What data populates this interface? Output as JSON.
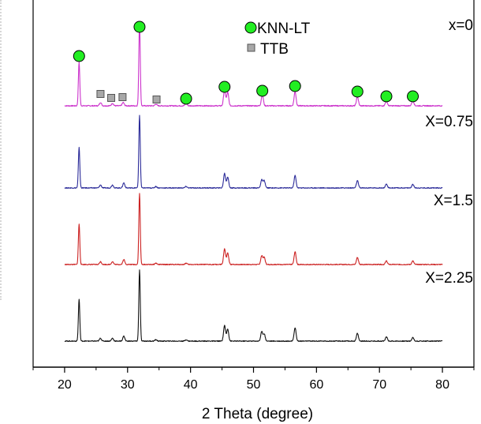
{
  "chart_data": {
    "type": "line",
    "title": "",
    "xlabel": "2 Theta (degree)",
    "ylabel": "",
    "xlim": [
      15,
      85
    ],
    "xticks": [
      20,
      30,
      40,
      50,
      60,
      70,
      80
    ],
    "grid": false,
    "legend": {
      "placement": "top-right",
      "entries": [
        {
          "name": "KNN-LT",
          "marker": "circle",
          "color": "#22ee22"
        },
        {
          "name": "TTB",
          "marker": "square",
          "color": "#a8a8a8"
        }
      ]
    },
    "series": [
      {
        "name": "x=0",
        "color": "#cc33cc",
        "peaks": [
          [
            22.3,
            52
          ],
          [
            25.7,
            4
          ],
          [
            27.6,
            3
          ],
          [
            29.3,
            4
          ],
          [
            31.9,
            100
          ],
          [
            34.5,
            2
          ],
          [
            39.3,
            3
          ],
          [
            45.4,
            20
          ],
          [
            45.9,
            16
          ],
          [
            51.4,
            14
          ],
          [
            56.6,
            17
          ],
          [
            66.5,
            11
          ],
          [
            71.1,
            6
          ],
          [
            75.3,
            7
          ]
        ]
      },
      {
        "name": "X=0.75",
        "color": "#2b2b99",
        "peaks": [
          [
            22.3,
            56
          ],
          [
            25.7,
            4
          ],
          [
            27.6,
            4
          ],
          [
            29.4,
            7
          ],
          [
            31.9,
            100
          ],
          [
            34.5,
            2
          ],
          [
            39.3,
            2
          ],
          [
            45.4,
            20
          ],
          [
            45.9,
            15
          ],
          [
            51.3,
            11
          ],
          [
            51.7,
            10
          ],
          [
            56.6,
            17
          ],
          [
            66.5,
            10
          ],
          [
            71.1,
            5
          ],
          [
            75.3,
            5
          ]
        ]
      },
      {
        "name": "X=1.5",
        "color": "#cc2222",
        "peaks": [
          [
            22.3,
            57
          ],
          [
            25.7,
            4
          ],
          [
            27.6,
            4
          ],
          [
            29.4,
            7
          ],
          [
            31.9,
            100
          ],
          [
            34.5,
            2
          ],
          [
            39.3,
            2
          ],
          [
            45.4,
            22
          ],
          [
            45.9,
            16
          ],
          [
            51.3,
            12
          ],
          [
            51.7,
            10
          ],
          [
            56.6,
            18
          ],
          [
            66.5,
            10
          ],
          [
            71.1,
            5
          ],
          [
            75.3,
            5
          ]
        ]
      },
      {
        "name": "X=2.25",
        "color": "#111111",
        "peaks": [
          [
            22.3,
            59
          ],
          [
            25.7,
            4
          ],
          [
            27.6,
            4
          ],
          [
            29.4,
            7
          ],
          [
            31.9,
            100
          ],
          [
            34.5,
            2
          ],
          [
            39.3,
            2
          ],
          [
            45.4,
            22
          ],
          [
            45.9,
            17
          ],
          [
            51.3,
            13
          ],
          [
            51.7,
            10
          ],
          [
            56.6,
            19
          ],
          [
            66.5,
            11
          ],
          [
            71.1,
            6
          ],
          [
            75.3,
            5
          ]
        ]
      }
    ],
    "annotations": {
      "knn_lt_peaks": [
        22.3,
        31.9,
        39.3,
        45.4,
        51.4,
        56.6,
        66.5,
        71.1,
        75.3
      ],
      "ttb_peaks": [
        25.7,
        27.4,
        29.2,
        34.6
      ]
    }
  }
}
